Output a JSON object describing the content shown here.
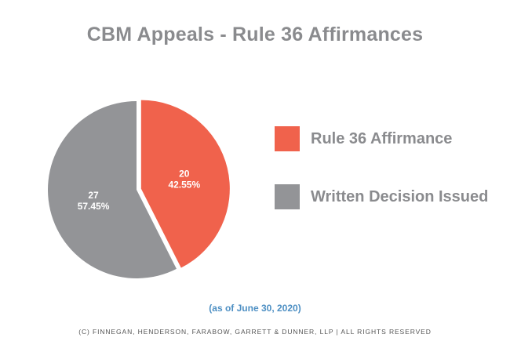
{
  "title": "CBM Appeals - Rule 36 Affirmances",
  "chart_data": {
    "type": "pie",
    "title": "CBM Appeals - Rule 36 Affirmances",
    "slices": [
      {
        "name": "Rule 36 Affirmance",
        "value": 20,
        "percent_label": "42.55%",
        "color": "#f0624c"
      },
      {
        "name": "Written Decision Issued",
        "value": 27,
        "percent_label": "57.45%",
        "color": "#939497"
      }
    ],
    "legend_position": "right"
  },
  "legend": [
    {
      "label": "Rule 36 Affirmance",
      "color": "#f0624c"
    },
    {
      "label": "Written Decision Issued",
      "color": "#939497"
    }
  ],
  "note": "(as of June 30, 2020)",
  "copyright": "(C) FINNEGAN, HENDERSON, FARABOW, GARRETT & DUNNER, LLP | ALL RIGHTS RESERVED"
}
